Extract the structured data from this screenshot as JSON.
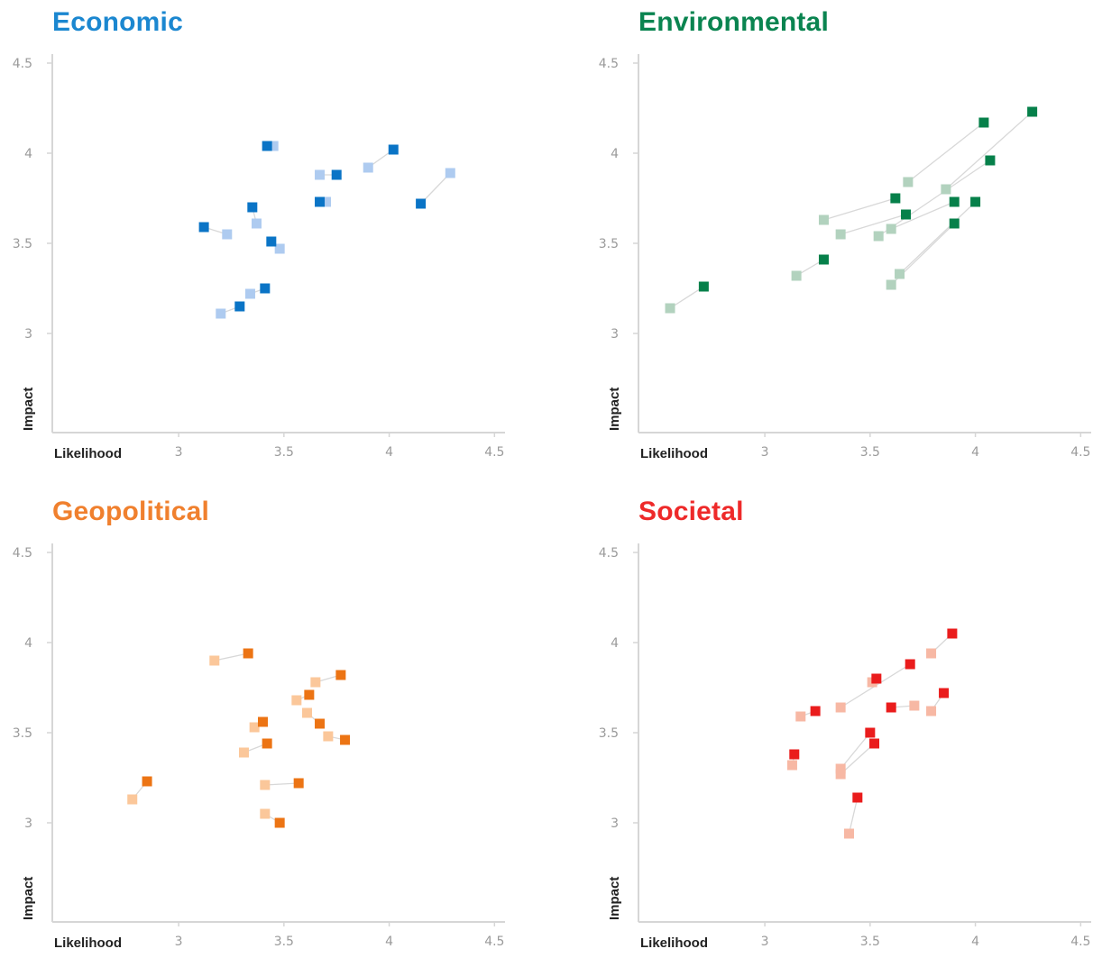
{
  "chart_data": [
    {
      "type": "scatter",
      "title": "Economic",
      "title_color": "#1b87d0",
      "xlabel": "Likelihood",
      "ylabel": "Impact",
      "xlim": [
        2.4,
        4.55
      ],
      "ylim": [
        2.45,
        4.55
      ],
      "x_ticks": [
        "3",
        "3.5",
        "4",
        "4.5"
      ],
      "y_ticks": [
        "3",
        "3.5",
        "4",
        "4.5"
      ],
      "grid": false,
      "legend": "none",
      "colors": {
        "current": "#0a74c6",
        "previous": "#aecbf0",
        "connector": "#d8d8d8"
      },
      "pairs": [
        {
          "prev": [
            3.45,
            4.04
          ],
          "curr": [
            3.42,
            4.04
          ]
        },
        {
          "prev": [
            3.67,
            3.88
          ],
          "curr": [
            3.75,
            3.88
          ]
        },
        {
          "prev": [
            3.9,
            3.92
          ],
          "curr": [
            4.02,
            4.02
          ]
        },
        {
          "prev": [
            4.29,
            3.89
          ],
          "curr": [
            4.15,
            3.72
          ]
        },
        {
          "prev": [
            3.7,
            3.73
          ],
          "curr": [
            3.67,
            3.73
          ]
        },
        {
          "prev": [
            3.37,
            3.61
          ],
          "curr": [
            3.35,
            3.7
          ]
        },
        {
          "prev": [
            3.23,
            3.55
          ],
          "curr": [
            3.12,
            3.59
          ]
        },
        {
          "prev": [
            3.48,
            3.47
          ],
          "curr": [
            3.44,
            3.51
          ]
        },
        {
          "prev": [
            3.34,
            3.22
          ],
          "curr": [
            3.41,
            3.25
          ]
        },
        {
          "prev": [
            3.2,
            3.11
          ],
          "curr": [
            3.29,
            3.15
          ]
        }
      ]
    },
    {
      "type": "scatter",
      "title": "Environmental",
      "title_color": "#0a8450",
      "xlabel": "Likelihood",
      "ylabel": "Impact",
      "xlim": [
        2.4,
        4.55
      ],
      "ylim": [
        2.45,
        4.55
      ],
      "x_ticks": [
        "3",
        "3.5",
        "4",
        "4.5"
      ],
      "y_ticks": [
        "3",
        "3.5",
        "4",
        "4.5"
      ],
      "grid": false,
      "legend": "none",
      "colors": {
        "current": "#06804a",
        "previous": "#b2d2be",
        "connector": "#d8d8d8"
      },
      "pairs": [
        {
          "prev": [
            3.68,
            3.84
          ],
          "curr": [
            4.04,
            4.17
          ]
        },
        {
          "prev": [
            3.86,
            3.8
          ],
          "curr": [
            4.27,
            4.23
          ]
        },
        {
          "prev": [
            3.28,
            3.63
          ],
          "curr": [
            3.62,
            3.75
          ]
        },
        {
          "prev": [
            3.36,
            3.55
          ],
          "curr": [
            3.67,
            3.66
          ]
        },
        {
          "prev": [
            3.6,
            3.58
          ],
          "curr": [
            3.9,
            3.73
          ]
        },
        {
          "prev": [
            3.54,
            3.54
          ],
          "curr": [
            4.07,
            3.96
          ]
        },
        {
          "prev": [
            3.64,
            3.33
          ],
          "curr": [
            4.0,
            3.73
          ]
        },
        {
          "prev": [
            3.6,
            3.27
          ],
          "curr": [
            3.9,
            3.61
          ]
        },
        {
          "prev": [
            3.15,
            3.32
          ],
          "curr": [
            3.28,
            3.41
          ]
        },
        {
          "prev": [
            2.55,
            3.14
          ],
          "curr": [
            2.71,
            3.26
          ]
        }
      ]
    },
    {
      "type": "scatter",
      "title": "Geopolitical",
      "title_color": "#f0802e",
      "xlabel": "Likelihood",
      "ylabel": "Impact",
      "xlim": [
        2.4,
        4.55
      ],
      "ylim": [
        2.45,
        4.55
      ],
      "x_ticks": [
        "3",
        "3.5",
        "4",
        "4.5"
      ],
      "y_ticks": [
        "3",
        "3.5",
        "4",
        "4.5"
      ],
      "grid": false,
      "legend": "none",
      "colors": {
        "current": "#ec7414",
        "previous": "#fbc79a",
        "connector": "#d8d8d8"
      },
      "pairs": [
        {
          "prev": [
            3.17,
            3.9
          ],
          "curr": [
            3.33,
            3.94
          ]
        },
        {
          "prev": [
            3.65,
            3.78
          ],
          "curr": [
            3.77,
            3.82
          ]
        },
        {
          "prev": [
            3.56,
            3.68
          ],
          "curr": [
            3.62,
            3.71
          ]
        },
        {
          "prev": [
            3.61,
            3.61
          ],
          "curr": [
            3.67,
            3.55
          ]
        },
        {
          "prev": [
            3.71,
            3.48
          ],
          "curr": [
            3.79,
            3.46
          ]
        },
        {
          "prev": [
            3.36,
            3.53
          ],
          "curr": [
            3.4,
            3.56
          ]
        },
        {
          "prev": [
            3.31,
            3.39
          ],
          "curr": [
            3.42,
            3.44
          ]
        },
        {
          "prev": [
            3.41,
            3.21
          ],
          "curr": [
            3.57,
            3.22
          ]
        },
        {
          "prev": [
            3.41,
            3.05
          ],
          "curr": [
            3.48,
            3.0
          ]
        },
        {
          "prev": [
            2.78,
            3.13
          ],
          "curr": [
            2.85,
            3.23
          ]
        }
      ]
    },
    {
      "type": "scatter",
      "title": "Societal",
      "title_color": "#ee2a2a",
      "xlabel": "Likelihood",
      "ylabel": "Impact",
      "xlim": [
        2.4,
        4.55
      ],
      "ylim": [
        2.45,
        4.55
      ],
      "x_ticks": [
        "3",
        "3.5",
        "4",
        "4.5"
      ],
      "y_ticks": [
        "3",
        "3.5",
        "4",
        "4.5"
      ],
      "grid": false,
      "legend": "none",
      "colors": {
        "current": "#ea1c1c",
        "previous": "#f7b8a4",
        "connector": "#d8d8d8"
      },
      "pairs": [
        {
          "prev": [
            3.79,
            3.94
          ],
          "curr": [
            3.89,
            4.05
          ]
        },
        {
          "prev": [
            3.36,
            3.64
          ],
          "curr": [
            3.69,
            3.88
          ]
        },
        {
          "prev": [
            3.51,
            3.78
          ],
          "curr": [
            3.53,
            3.8
          ]
        },
        {
          "prev": [
            3.17,
            3.59
          ],
          "curr": [
            3.24,
            3.62
          ]
        },
        {
          "prev": [
            3.71,
            3.65
          ],
          "curr": [
            3.6,
            3.64
          ]
        },
        {
          "prev": [
            3.79,
            3.62
          ],
          "curr": [
            3.85,
            3.72
          ]
        },
        {
          "prev": [
            3.13,
            3.32
          ],
          "curr": [
            3.14,
            3.38
          ]
        },
        {
          "prev": [
            3.36,
            3.3
          ],
          "curr": [
            3.5,
            3.5
          ]
        },
        {
          "prev": [
            3.36,
            3.27
          ],
          "curr": [
            3.52,
            3.44
          ]
        },
        {
          "prev": [
            3.4,
            2.94
          ],
          "curr": [
            3.44,
            3.14
          ]
        }
      ]
    }
  ]
}
